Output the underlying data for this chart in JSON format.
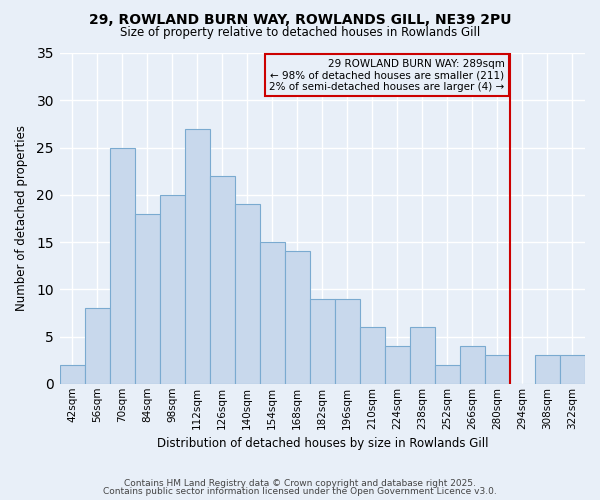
{
  "title": "29, ROWLAND BURN WAY, ROWLANDS GILL, NE39 2PU",
  "subtitle": "Size of property relative to detached houses in Rowlands Gill",
  "xlabel": "Distribution of detached houses by size in Rowlands Gill",
  "ylabel": "Number of detached properties",
  "categories": [
    "42sqm",
    "56sqm",
    "70sqm",
    "84sqm",
    "98sqm",
    "112sqm",
    "126sqm",
    "140sqm",
    "154sqm",
    "168sqm",
    "182sqm",
    "196sqm",
    "210sqm",
    "224sqm",
    "238sqm",
    "252sqm",
    "266sqm",
    "280sqm",
    "294sqm",
    "308sqm",
    "322sqm"
  ],
  "values": [
    2,
    8,
    25,
    18,
    20,
    27,
    22,
    19,
    15,
    14,
    9,
    9,
    6,
    4,
    6,
    2,
    4,
    3,
    0,
    3,
    3
  ],
  "bar_color": "#c8d8ec",
  "bar_edge_color": "#7aaad0",
  "background_color": "#e8eff8",
  "grid_color": "#ffffff",
  "vline_color": "#cc0000",
  "annotation_text": "29 ROWLAND BURN WAY: 289sqm\n← 98% of detached houses are smaller (211)\n2% of semi-detached houses are larger (4) →",
  "annotation_box_color": "#cc0000",
  "ylim": [
    0,
    35
  ],
  "yticks": [
    0,
    5,
    10,
    15,
    20,
    25,
    30,
    35
  ],
  "footer1": "Contains HM Land Registry data © Crown copyright and database right 2025.",
  "footer2": "Contains public sector information licensed under the Open Government Licence v3.0."
}
